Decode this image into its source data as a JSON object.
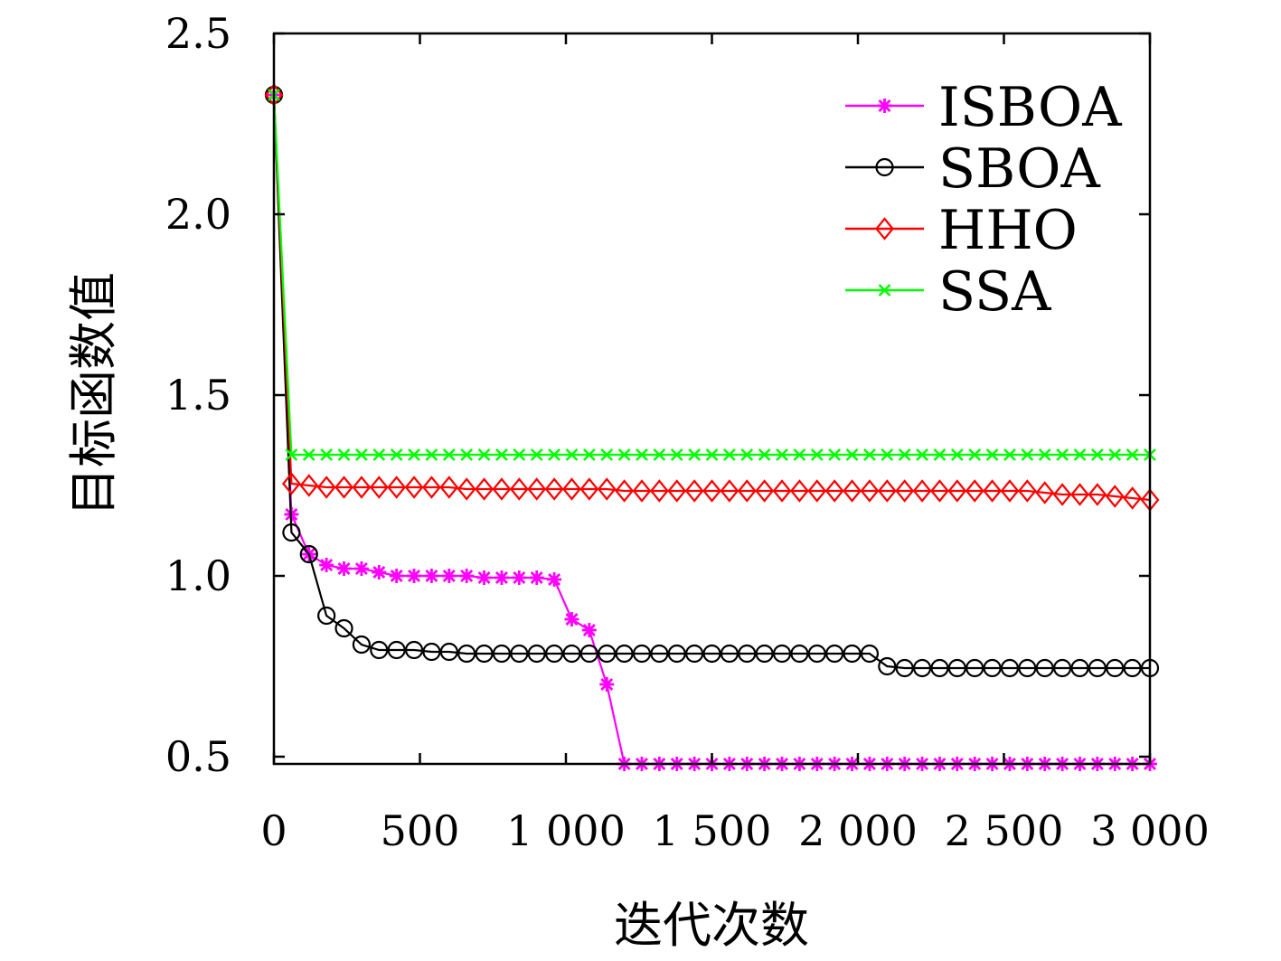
{
  "chart_data": {
    "type": "line",
    "xlabel": "迭代次数",
    "ylabel": "目标函数值",
    "xlim": [
      0,
      3000
    ],
    "ylim": [
      0.48,
      2.5
    ],
    "x_ticks": [
      {
        "value": 0,
        "label": "0"
      },
      {
        "value": 500,
        "label": "500"
      },
      {
        "value": 1000,
        "label": "1 000"
      },
      {
        "value": 1500,
        "label": "1 500"
      },
      {
        "value": 2000,
        "label": "2 000"
      },
      {
        "value": 2500,
        "label": "2 500"
      },
      {
        "value": 3000,
        "label": "3 000"
      }
    ],
    "y_ticks": [
      {
        "value": 0.5,
        "label": "0.5"
      },
      {
        "value": 1.0,
        "label": "1.0"
      },
      {
        "value": 1.5,
        "label": "1.5"
      },
      {
        "value": 2.0,
        "label": "2.0"
      },
      {
        "value": 2.5,
        "label": "2.5"
      }
    ],
    "legend": {
      "position": "top-right"
    },
    "grid": false,
    "series": [
      {
        "name": "ISBOA",
        "color": "#ff00ff",
        "marker": "asterisk",
        "x": [
          0,
          60,
          120,
          180,
          240,
          300,
          360,
          420,
          480,
          540,
          600,
          660,
          720,
          780,
          840,
          900,
          960,
          1020,
          1080,
          1140,
          1200,
          1260,
          1320,
          1380,
          1440,
          1500,
          1560,
          1620,
          1680,
          1740,
          1800,
          1860,
          1920,
          1980,
          2040,
          2100,
          2160,
          2220,
          2280,
          2340,
          2400,
          2460,
          2520,
          2580,
          2640,
          2700,
          2760,
          2820,
          2880,
          2940,
          3000
        ],
        "values": [
          2.33,
          1.17,
          1.06,
          1.03,
          1.02,
          1.02,
          1.01,
          1.0,
          1.0,
          1.0,
          1.0,
          1.0,
          0.995,
          0.995,
          0.995,
          0.995,
          0.99,
          0.88,
          0.85,
          0.7,
          0.48,
          0.48,
          0.48,
          0.48,
          0.48,
          0.48,
          0.48,
          0.48,
          0.48,
          0.48,
          0.48,
          0.48,
          0.48,
          0.48,
          0.48,
          0.48,
          0.48,
          0.48,
          0.48,
          0.48,
          0.48,
          0.48,
          0.48,
          0.48,
          0.48,
          0.48,
          0.48,
          0.48,
          0.48,
          0.48,
          0.48
        ]
      },
      {
        "name": "SBOA",
        "color": "#000000",
        "marker": "circle",
        "x": [
          0,
          60,
          120,
          180,
          240,
          300,
          360,
          420,
          480,
          540,
          600,
          660,
          720,
          780,
          840,
          900,
          960,
          1020,
          1080,
          1140,
          1200,
          1260,
          1320,
          1380,
          1440,
          1500,
          1560,
          1620,
          1680,
          1740,
          1800,
          1860,
          1920,
          1980,
          2040,
          2100,
          2160,
          2220,
          2280,
          2340,
          2400,
          2460,
          2520,
          2580,
          2640,
          2700,
          2760,
          2820,
          2880,
          2940,
          3000
        ],
        "values": [
          2.33,
          1.12,
          1.06,
          0.89,
          0.855,
          0.81,
          0.795,
          0.795,
          0.795,
          0.79,
          0.79,
          0.785,
          0.785,
          0.785,
          0.785,
          0.785,
          0.785,
          0.785,
          0.785,
          0.785,
          0.785,
          0.785,
          0.785,
          0.785,
          0.785,
          0.785,
          0.785,
          0.785,
          0.785,
          0.785,
          0.785,
          0.785,
          0.785,
          0.785,
          0.785,
          0.75,
          0.745,
          0.745,
          0.745,
          0.745,
          0.745,
          0.745,
          0.745,
          0.745,
          0.745,
          0.745,
          0.745,
          0.745,
          0.745,
          0.745,
          0.745
        ]
      },
      {
        "name": "HHO",
        "color": "#ff0000",
        "marker": "diamond",
        "x": [
          0,
          60,
          120,
          180,
          240,
          300,
          360,
          420,
          480,
          540,
          600,
          660,
          720,
          780,
          840,
          900,
          960,
          1020,
          1080,
          1140,
          1200,
          1260,
          1320,
          1380,
          1440,
          1500,
          1560,
          1620,
          1680,
          1740,
          1800,
          1860,
          1920,
          1980,
          2040,
          2100,
          2160,
          2220,
          2280,
          2340,
          2400,
          2460,
          2520,
          2580,
          2640,
          2700,
          2760,
          2820,
          2880,
          2940,
          3000
        ],
        "values": [
          2.33,
          1.255,
          1.25,
          1.245,
          1.245,
          1.245,
          1.245,
          1.245,
          1.245,
          1.245,
          1.245,
          1.24,
          1.24,
          1.24,
          1.24,
          1.24,
          1.24,
          1.24,
          1.24,
          1.24,
          1.235,
          1.235,
          1.235,
          1.235,
          1.235,
          1.235,
          1.235,
          1.235,
          1.235,
          1.235,
          1.235,
          1.235,
          1.235,
          1.235,
          1.235,
          1.235,
          1.235,
          1.235,
          1.235,
          1.235,
          1.235,
          1.235,
          1.235,
          1.235,
          1.23,
          1.225,
          1.225,
          1.225,
          1.22,
          1.215,
          1.21
        ]
      },
      {
        "name": "SSA",
        "color": "#00ff00",
        "marker": "x",
        "x": [
          0,
          60,
          120,
          180,
          240,
          300,
          360,
          420,
          480,
          540,
          600,
          660,
          720,
          780,
          840,
          900,
          960,
          1020,
          1080,
          1140,
          1200,
          1260,
          1320,
          1380,
          1440,
          1500,
          1560,
          1620,
          1680,
          1740,
          1800,
          1860,
          1920,
          1980,
          2040,
          2100,
          2160,
          2220,
          2280,
          2340,
          2400,
          2460,
          2520,
          2580,
          2640,
          2700,
          2760,
          2820,
          2880,
          2940,
          3000
        ],
        "values": [
          2.33,
          1.335,
          1.335,
          1.335,
          1.335,
          1.335,
          1.335,
          1.335,
          1.335,
          1.335,
          1.335,
          1.335,
          1.335,
          1.335,
          1.335,
          1.335,
          1.335,
          1.335,
          1.335,
          1.335,
          1.335,
          1.335,
          1.335,
          1.335,
          1.335,
          1.335,
          1.335,
          1.335,
          1.335,
          1.335,
          1.335,
          1.335,
          1.335,
          1.335,
          1.335,
          1.335,
          1.335,
          1.335,
          1.335,
          1.335,
          1.335,
          1.335,
          1.335,
          1.335,
          1.335,
          1.335,
          1.335,
          1.335,
          1.335,
          1.335,
          1.335
        ]
      }
    ]
  }
}
